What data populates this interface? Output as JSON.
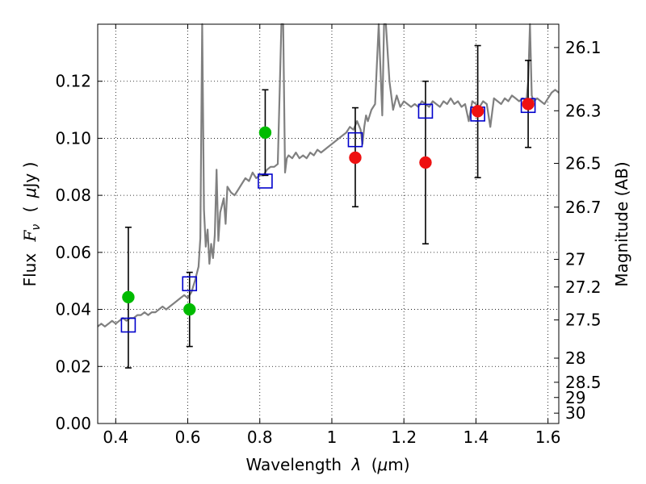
{
  "chart_data": {
    "type": "scatter",
    "xlabel_text": "Wavelength",
    "xlabel_symbol": "λ",
    "xlabel_unit_open": "(",
    "xlabel_unit_mu": "μ",
    "xlabel_unit_rest": "m)",
    "ylabel_text": "Flux",
    "ylabel_symbol_main": "F",
    "ylabel_symbol_sub": "ν",
    "ylabel_unit_open": "(",
    "ylabel_unit_mu": "μ",
    "ylabel_unit_rest": "Jy )",
    "y2label": "Magnitude (AB)",
    "xlim": [
      0.35,
      1.63
    ],
    "ylim": [
      0.0,
      0.14
    ],
    "grid": true,
    "grid_style": "dotted",
    "x_ticks": [
      {
        "value": 0.4,
        "label": "0.4"
      },
      {
        "value": 0.6,
        "label": "0.6"
      },
      {
        "value": 0.8,
        "label": "0.8"
      },
      {
        "value": 1.0,
        "label": "1"
      },
      {
        "value": 1.2,
        "label": "1.2"
      },
      {
        "value": 1.4,
        "label": "1.4"
      },
      {
        "value": 1.6,
        "label": "1.6"
      }
    ],
    "y_ticks": [
      {
        "value": 0.0,
        "label": "0.00"
      },
      {
        "value": 0.02,
        "label": "0.02"
      },
      {
        "value": 0.04,
        "label": "0.04"
      },
      {
        "value": 0.06,
        "label": "0.06"
      },
      {
        "value": 0.08,
        "label": "0.08"
      },
      {
        "value": 0.1,
        "label": "0.10"
      },
      {
        "value": 0.12,
        "label": "0.12"
      }
    ],
    "y2_ticks": [
      {
        "value": 26.1,
        "label": "26.1"
      },
      {
        "value": 26.3,
        "label": "26.3"
      },
      {
        "value": 26.5,
        "label": "26.5"
      },
      {
        "value": 26.7,
        "label": "26.7"
      },
      {
        "value": 27.0,
        "label": "27"
      },
      {
        "value": 27.2,
        "label": "27.2"
      },
      {
        "value": 27.5,
        "label": "27.5"
      },
      {
        "value": 28.0,
        "label": "28"
      },
      {
        "value": 28.5,
        "label": "28.5"
      },
      {
        "value": 29.0,
        "label": "29"
      },
      {
        "value": 30.0,
        "label": "30"
      }
    ],
    "spectrum": {
      "color": "#808080",
      "x": [
        0.35,
        0.36,
        0.37,
        0.38,
        0.39,
        0.4,
        0.41,
        0.42,
        0.43,
        0.44,
        0.45,
        0.46,
        0.47,
        0.48,
        0.49,
        0.5,
        0.51,
        0.52,
        0.53,
        0.54,
        0.55,
        0.56,
        0.57,
        0.58,
        0.59,
        0.6,
        0.61,
        0.62,
        0.63,
        0.635,
        0.64,
        0.645,
        0.65,
        0.655,
        0.66,
        0.665,
        0.67,
        0.675,
        0.68,
        0.685,
        0.69,
        0.7,
        0.705,
        0.71,
        0.72,
        0.73,
        0.74,
        0.75,
        0.76,
        0.77,
        0.78,
        0.79,
        0.8,
        0.81,
        0.82,
        0.83,
        0.84,
        0.85,
        0.86,
        0.865,
        0.87,
        0.875,
        0.88,
        0.89,
        0.9,
        0.91,
        0.92,
        0.93,
        0.94,
        0.95,
        0.96,
        0.97,
        0.98,
        0.99,
        1.0,
        1.01,
        1.02,
        1.03,
        1.04,
        1.05,
        1.06,
        1.07,
        1.08,
        1.085,
        1.09,
        1.095,
        1.1,
        1.11,
        1.12,
        1.13,
        1.14,
        1.145,
        1.15,
        1.16,
        1.17,
        1.18,
        1.19,
        1.2,
        1.21,
        1.22,
        1.23,
        1.24,
        1.25,
        1.26,
        1.27,
        1.28,
        1.29,
        1.3,
        1.31,
        1.32,
        1.33,
        1.34,
        1.35,
        1.36,
        1.37,
        1.38,
        1.39,
        1.4,
        1.41,
        1.42,
        1.43,
        1.44,
        1.45,
        1.46,
        1.47,
        1.48,
        1.49,
        1.5,
        1.51,
        1.52,
        1.53,
        1.54,
        1.545,
        1.55,
        1.555,
        1.56,
        1.57,
        1.58,
        1.59,
        1.6,
        1.61,
        1.62,
        1.63
      ],
      "y": [
        0.034,
        0.035,
        0.034,
        0.035,
        0.036,
        0.035,
        0.036,
        0.037,
        0.036,
        0.037,
        0.037,
        0.038,
        0.038,
        0.039,
        0.038,
        0.039,
        0.039,
        0.04,
        0.041,
        0.04,
        0.041,
        0.042,
        0.043,
        0.044,
        0.045,
        0.044,
        0.046,
        0.05,
        0.055,
        0.065,
        0.14,
        0.075,
        0.062,
        0.068,
        0.056,
        0.063,
        0.058,
        0.066,
        0.089,
        0.064,
        0.074,
        0.079,
        0.07,
        0.083,
        0.081,
        0.08,
        0.082,
        0.084,
        0.086,
        0.085,
        0.088,
        0.086,
        0.087,
        0.087,
        0.089,
        0.09,
        0.09,
        0.091,
        0.14,
        0.14,
        0.088,
        0.093,
        0.094,
        0.093,
        0.095,
        0.093,
        0.094,
        0.093,
        0.095,
        0.094,
        0.096,
        0.095,
        0.096,
        0.097,
        0.098,
        0.099,
        0.1,
        0.101,
        0.102,
        0.104,
        0.103,
        0.106,
        0.103,
        0.098,
        0.104,
        0.108,
        0.106,
        0.11,
        0.112,
        0.14,
        0.108,
        0.14,
        0.14,
        0.12,
        0.11,
        0.115,
        0.111,
        0.113,
        0.112,
        0.111,
        0.112,
        0.111,
        0.113,
        0.112,
        0.111,
        0.113,
        0.112,
        0.111,
        0.113,
        0.112,
        0.114,
        0.112,
        0.113,
        0.111,
        0.112,
        0.106,
        0.113,
        0.112,
        0.111,
        0.113,
        0.112,
        0.104,
        0.114,
        0.113,
        0.112,
        0.114,
        0.113,
        0.115,
        0.114,
        0.113,
        0.114,
        0.113,
        0.12,
        0.14,
        0.115,
        0.113,
        0.114,
        0.113,
        0.112,
        0.114,
        0.116,
        0.117,
        0.116
      ]
    },
    "series": [
      {
        "marker": "open-square",
        "color": "#0000cc",
        "points": [
          {
            "x": 0.435,
            "y": 0.0345
          },
          {
            "x": 0.605,
            "y": 0.049
          },
          {
            "x": 0.815,
            "y": 0.085
          },
          {
            "x": 1.065,
            "y": 0.0995
          },
          {
            "x": 1.26,
            "y": 0.1095
          },
          {
            "x": 1.405,
            "y": 0.1085
          },
          {
            "x": 1.545,
            "y": 0.1115
          }
        ]
      },
      {
        "marker": "filled-circle",
        "color": "#00bb00",
        "points": [
          {
            "x": 0.435,
            "y": 0.0443,
            "err_low": 0.0195,
            "err_high": 0.0688
          },
          {
            "x": 0.605,
            "y": 0.04,
            "err_low": 0.027,
            "err_high": 0.053
          },
          {
            "x": 0.815,
            "y": 0.102,
            "err_low": 0.087,
            "err_high": 0.117
          }
        ]
      },
      {
        "marker": "filled-circle",
        "color": "#ee1111",
        "points": [
          {
            "x": 1.065,
            "y": 0.0932,
            "err_low": 0.076,
            "err_high": 0.1107
          },
          {
            "x": 1.26,
            "y": 0.0915,
            "err_low": 0.063,
            "err_high": 0.12
          },
          {
            "x": 1.405,
            "y": 0.1095,
            "err_low": 0.0862,
            "err_high": 0.1325
          },
          {
            "x": 1.545,
            "y": 0.112,
            "err_low": 0.0968,
            "err_high": 0.1273
          }
        ]
      }
    ]
  }
}
